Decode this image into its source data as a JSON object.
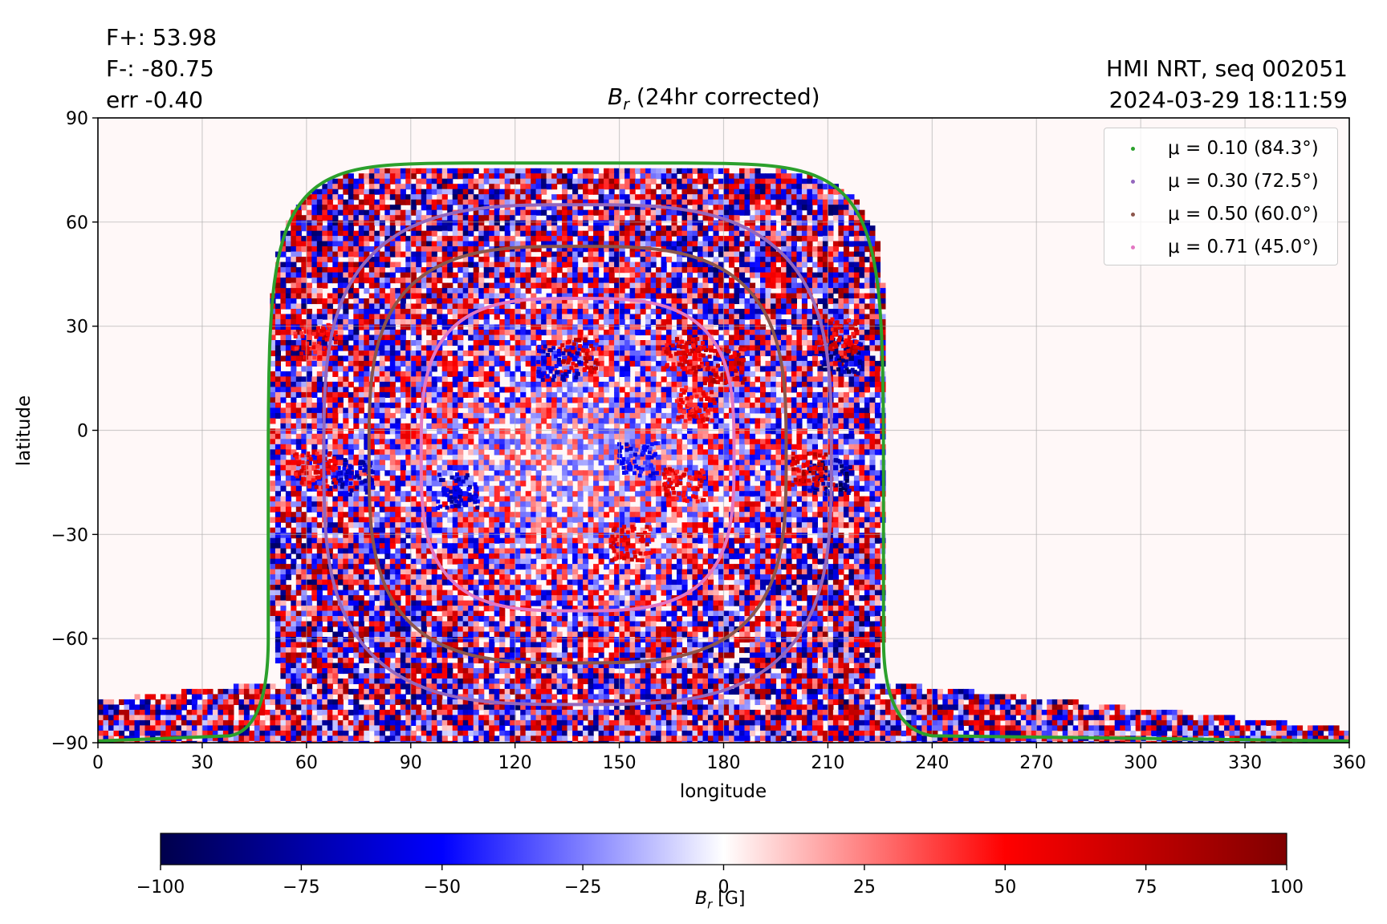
{
  "header": {
    "flux_pos": "F+: 53.98",
    "flux_neg": "F-: -80.75",
    "err": "err -0.40",
    "source": "HMI NRT, seq 002051",
    "timestamp": "2024-03-29 18:11:59",
    "title_var": "B",
    "title_sub": "r",
    "title_rest": " (24hr corrected)"
  },
  "chart_data": {
    "type": "heatmap",
    "xlabel": "longitude",
    "ylabel": "latitude",
    "xlim": [
      0,
      360
    ],
    "ylim": [
      -90,
      90
    ],
    "xticks": [
      "0",
      "30",
      "60",
      "90",
      "120",
      "150",
      "180",
      "210",
      "240",
      "270",
      "300",
      "330",
      "360"
    ],
    "yticks": [
      "90",
      "60",
      "30",
      "0",
      "−30",
      "−60",
      "−90"
    ],
    "xtick_values": [
      0,
      30,
      60,
      90,
      120,
      150,
      180,
      210,
      240,
      270,
      300,
      330,
      360
    ],
    "ytick_values": [
      90,
      60,
      30,
      0,
      -30,
      -60,
      -90
    ],
    "grid": true,
    "legend_position": "top-right",
    "legend": [
      {
        "label": "μ = 0.10 (84.3°)",
        "color": "#2ca02c"
      },
      {
        "label": "μ = 0.30 (72.5°)",
        "color": "#9467bd"
      },
      {
        "label": "μ = 0.50 (60.0°)",
        "color": "#8c564b"
      },
      {
        "label": "μ = 0.71 (45.0°)",
        "color": "#e377c2"
      }
    ],
    "disk_center": {
      "lon": 137.5,
      "lat": -7
    },
    "contours": [
      {
        "lon_min": 49,
        "lon_max": 226,
        "lat_min": -90,
        "lat_max": 77,
        "color": "#2ca02c"
      },
      {
        "lon_min": 65,
        "lon_max": 211,
        "lat_min": -79,
        "lat_max": 65,
        "color": "#9467bd"
      },
      {
        "lon_min": 78,
        "lon_max": 198,
        "lat_min": -67,
        "lat_max": 53,
        "color": "#8c564b"
      },
      {
        "lon_min": 93,
        "lon_max": 183,
        "lat_min": -52,
        "lat_max": 38,
        "color": "#e377c2"
      }
    ],
    "active_regions": [
      {
        "lon": 210,
        "lat": -13,
        "value": -95
      },
      {
        "lon": 205,
        "lat": -11,
        "value": 80
      },
      {
        "lon": 213,
        "lat": 22,
        "value": -90
      },
      {
        "lon": 212,
        "lat": 28,
        "value": 70
      },
      {
        "lon": 138,
        "lat": 22,
        "value": 75
      },
      {
        "lon": 132,
        "lat": 20,
        "value": -70
      },
      {
        "lon": 180,
        "lat": 19,
        "value": 80
      },
      {
        "lon": 168,
        "lat": 22,
        "value": 70
      },
      {
        "lon": 172,
        "lat": 8,
        "value": 65
      },
      {
        "lon": 168,
        "lat": -15,
        "value": 70
      },
      {
        "lon": 155,
        "lat": -8,
        "value": -60
      },
      {
        "lon": 103,
        "lat": -17,
        "value": -75
      },
      {
        "lon": 73,
        "lat": -13,
        "value": -80
      },
      {
        "lon": 62,
        "lat": -11,
        "value": 70
      },
      {
        "lon": 62,
        "lat": 26,
        "value": 60
      },
      {
        "lon": 153,
        "lat": -32,
        "value": 70
      }
    ],
    "colorbar": {
      "label_var": "B",
      "label_sub": "r",
      "label_rest": " [G]",
      "min": -100,
      "max": 100,
      "ticks": [
        "−100",
        "−75",
        "−50",
        "−25",
        "0",
        "25",
        "50",
        "75",
        "100"
      ],
      "tick_values": [
        -100,
        -75,
        -50,
        -25,
        0,
        25,
        50,
        75,
        100
      ],
      "colormap": "seismic",
      "colors": [
        "#00004c",
        "#0000ff",
        "#ffffff",
        "#ff0000",
        "#800000"
      ]
    }
  }
}
